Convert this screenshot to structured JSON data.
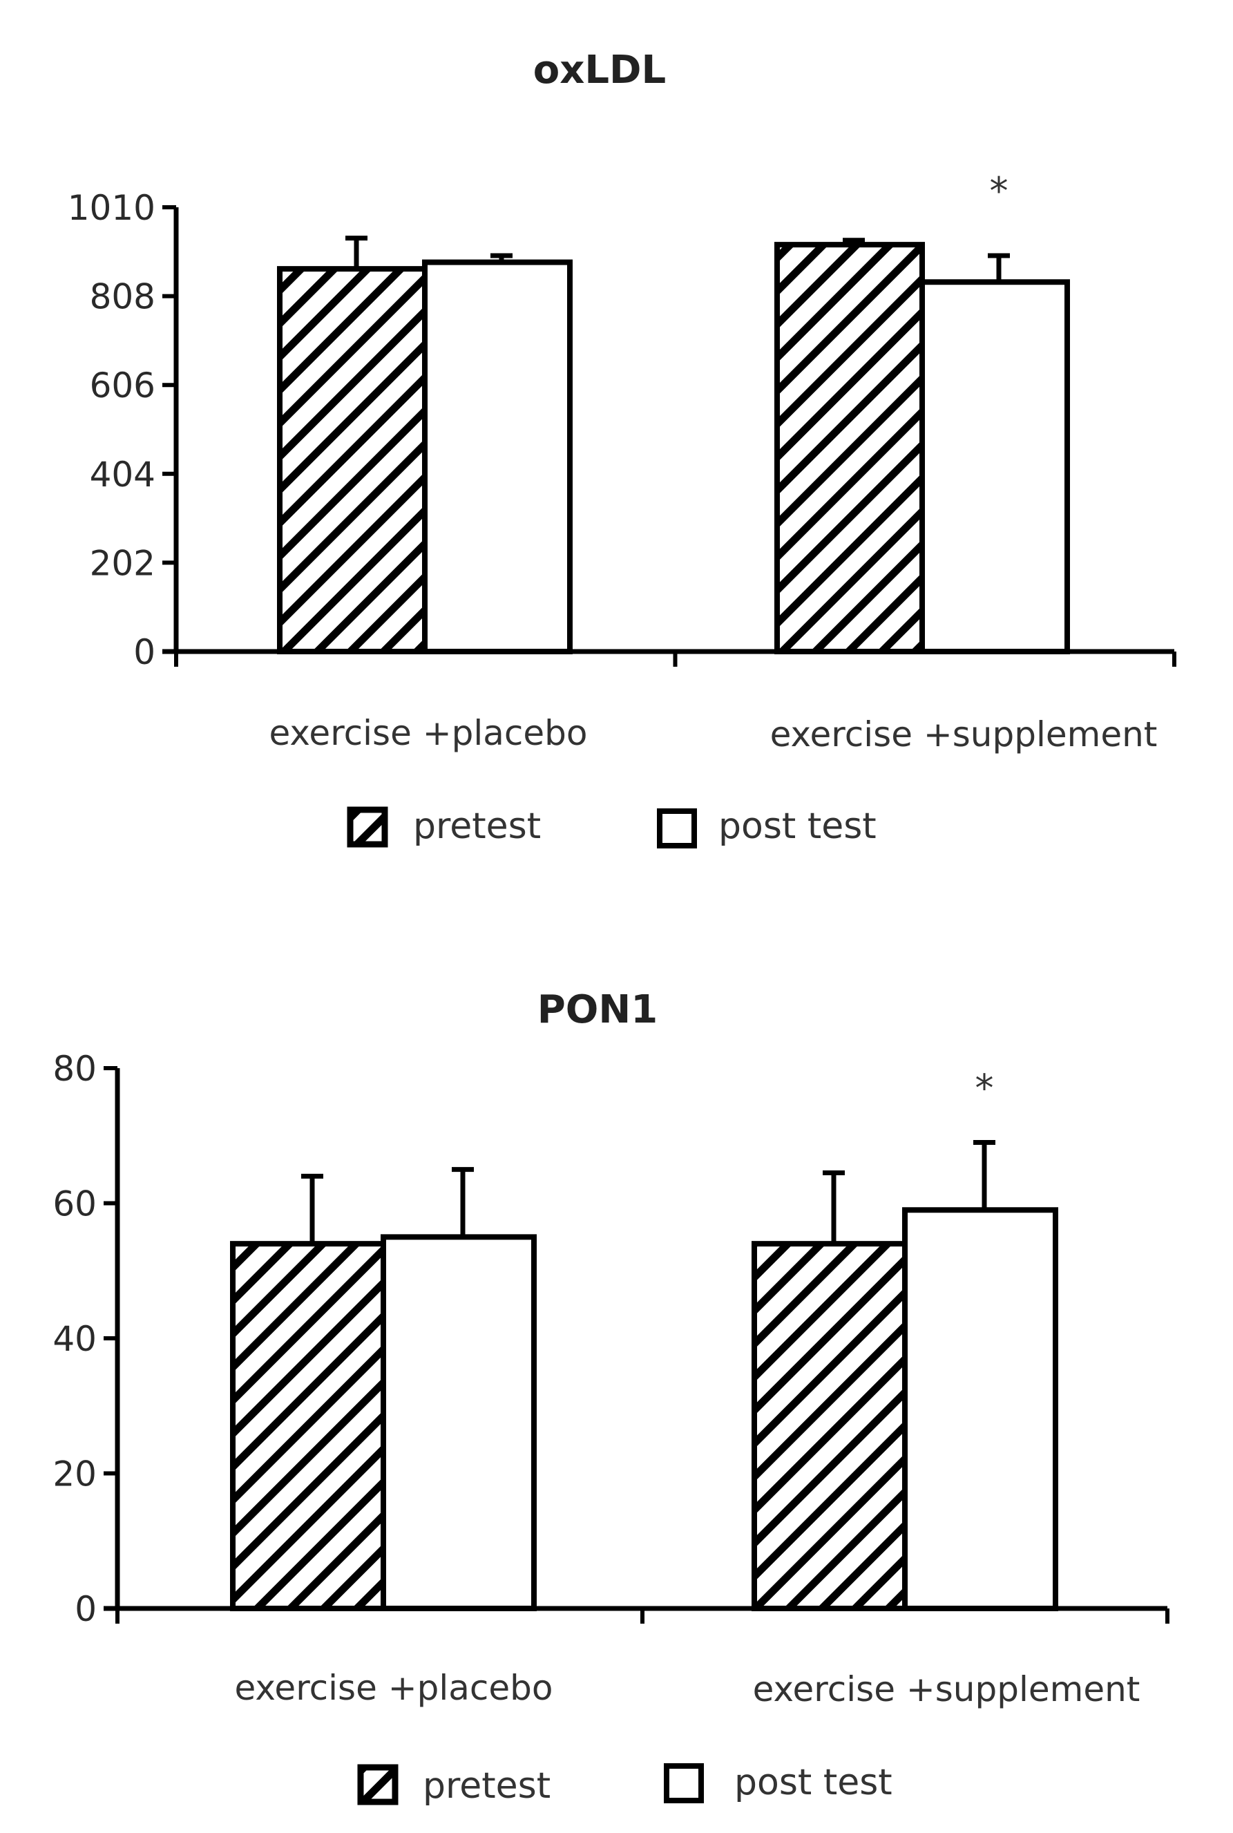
{
  "chart_data": [
    {
      "type": "bar",
      "title": "oxLDL",
      "xlabel": "",
      "ylabel": "",
      "ylim": [
        0,
        1010
      ],
      "yticks": [
        "0",
        "202",
        "404",
        "606",
        "808",
        "1010"
      ],
      "categories": [
        "exercise +placebo",
        "exercise +supplement"
      ],
      "series": [
        {
          "name": "pretest",
          "pattern": "hatched",
          "values": [
            870,
            925
          ],
          "errors": [
            70,
            10
          ]
        },
        {
          "name": "post test",
          "pattern": "open",
          "values": [
            885,
            840
          ],
          "errors": [
            15,
            60
          ]
        }
      ],
      "annotations": [
        {
          "text": "*",
          "category": "exercise +supplement"
        }
      ],
      "legend": [
        "pretest",
        "post test"
      ]
    },
    {
      "type": "bar",
      "title": "PON1",
      "xlabel": "",
      "ylabel": "",
      "ylim": [
        0,
        80
      ],
      "yticks": [
        "0",
        "20",
        "40",
        "60",
        "80"
      ],
      "categories": [
        "exercise +placebo",
        "exercise +supplement"
      ],
      "series": [
        {
          "name": "pretest",
          "pattern": "hatched",
          "values": [
            54,
            54
          ],
          "errors": [
            10,
            10.5
          ]
        },
        {
          "name": "post test",
          "pattern": "open",
          "values": [
            55,
            59
          ],
          "errors": [
            10,
            10
          ]
        }
      ],
      "annotations": [
        {
          "text": "*",
          "category": "exercise +supplement"
        }
      ],
      "legend": [
        "pretest",
        "post test"
      ]
    }
  ],
  "colors": {
    "ink": "#000000",
    "background": "#ffffff"
  }
}
